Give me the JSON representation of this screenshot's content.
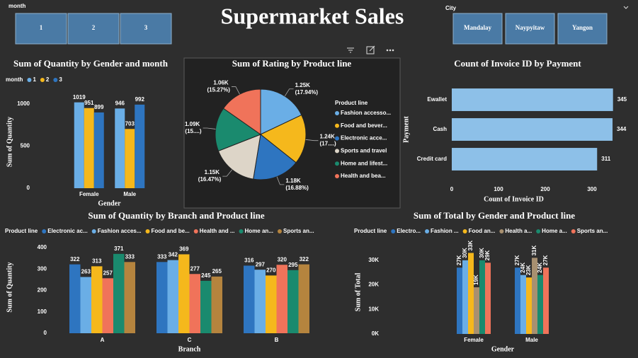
{
  "header": {
    "title": "Supermarket Sales"
  },
  "slicers": [
    {
      "label": "month",
      "items": [
        "1",
        "2",
        "3"
      ]
    },
    {
      "label": "City",
      "items": [
        "Mandalay",
        "Naypyitaw",
        "Yangon"
      ]
    }
  ],
  "chart_data": [
    {
      "type": "bar",
      "title": "Sum of Quantity by Gender and month",
      "x_label": "Gender",
      "y_label": "Sum of Quantity",
      "legend_title": "month",
      "legend": "top-left",
      "grid": false,
      "categories": [
        "Female",
        "Male"
      ],
      "series": [
        {
          "name": "1",
          "color": "#6aaee6",
          "values": [
            1019,
            946
          ]
        },
        {
          "name": "2",
          "color": "#f5b81c",
          "values": [
            951,
            703
          ]
        },
        {
          "name": "3",
          "color": "#2e75c0",
          "values": [
            899,
            992
          ]
        }
      ],
      "ylim": [
        0,
        1100
      ],
      "yticks": [
        0,
        500,
        1000
      ]
    },
    {
      "type": "pie",
      "title": "Sum of Rating by Product line",
      "legend_title": "Product line",
      "legend": "right",
      "categories": [
        "Fashion accesso...",
        "Food and bever...",
        "Electronic acce...",
        "Sports and travel",
        "Home and lifest...",
        "Health and bea..."
      ],
      "values": [
        1251.2,
        1237.7,
        1177.2,
        1148.1,
        1094.0,
        1064.5
      ],
      "value_labels": [
        "1.25K (17.94%)",
        "1.24K (17....)",
        "1.18K (16.88%)",
        "1.15K (16.47%)",
        "1.09K (15....)",
        "1.06K (15.27%)"
      ],
      "colors": [
        "#6aaee6",
        "#f5b81c",
        "#2e75c0",
        "#ddd5c8",
        "#1a8a6e",
        "#f0735a"
      ]
    },
    {
      "type": "hbar",
      "title": "Count of Invoice ID by Payment",
      "x_label": "Count of Invoice ID",
      "y_label": "Payment",
      "grid": false,
      "categories": [
        "Ewallet",
        "Cash",
        "Credit card"
      ],
      "values": [
        345,
        344,
        311
      ],
      "color": "#8dc0e8",
      "xlim": [
        0,
        350
      ],
      "xticks": [
        0,
        100,
        200,
        300
      ]
    },
    {
      "type": "bar",
      "title": "Sum of Quantity by Branch and Product line",
      "x_label": "Branch",
      "y_label": "Sum of Quantity",
      "legend_title": "Product line",
      "legend": "top-left",
      "grid": false,
      "categories": [
        "A",
        "C",
        "B"
      ],
      "series": [
        {
          "name": "Electronic ac...",
          "color": "#2e75c0",
          "values": [
            322,
            333,
            316
          ]
        },
        {
          "name": "Fashion acces...",
          "color": "#6aaee6",
          "values": [
            263,
            342,
            297
          ]
        },
        {
          "name": "Food and be...",
          "color": "#f5b81c",
          "values": [
            313,
            369,
            270
          ]
        },
        {
          "name": "Health and ...",
          "color": "#f0735a",
          "values": [
            257,
            277,
            320
          ]
        },
        {
          "name": "Home an...",
          "color": "#1a8a6e",
          "values": [
            371,
            245,
            295
          ]
        },
        {
          "name": "Sports an...",
          "color": "#b5843e",
          "values": [
            333,
            265,
            322
          ]
        }
      ],
      "ylim": [
        0,
        430
      ],
      "yticks": [
        0,
        100,
        200,
        300,
        400
      ]
    },
    {
      "type": "bar",
      "title": "Sum of Total by Gender and Product line",
      "x_label": "Gender",
      "y_label": "Sum of Total",
      "legend_title": "Product line",
      "legend": "top-left",
      "grid": false,
      "categories": [
        "Female",
        "Male"
      ],
      "series": [
        {
          "name": "Electro...",
          "color": "#2e75c0",
          "values": [
            27000,
            27000
          ],
          "value_labels": [
            "27K",
            "27K"
          ]
        },
        {
          "name": "Fashion ...",
          "color": "#6aaee6",
          "values": [
            30000,
            24000
          ],
          "value_labels": [
            "30K",
            "24K"
          ]
        },
        {
          "name": "Food an...",
          "color": "#f5b81c",
          "values": [
            33000,
            23000
          ],
          "value_labels": [
            "33K",
            "23K"
          ]
        },
        {
          "name": "Health a...",
          "color": "#a89070",
          "values": [
            19000,
            31000
          ],
          "value_labels": [
            "19K",
            "31K"
          ]
        },
        {
          "name": "Home a...",
          "color": "#1a8a6e",
          "values": [
            30000,
            24000
          ],
          "value_labels": [
            "30K",
            "24K"
          ]
        },
        {
          "name": "Sports an...",
          "color": "#f0735a",
          "values": [
            29000,
            27000
          ],
          "value_labels": [
            "29K",
            "27K"
          ]
        }
      ],
      "ylim": [
        0,
        34000
      ],
      "yticks": [
        {
          "value": 0,
          "label": "0K"
        },
        {
          "value": 10000,
          "label": "10K"
        },
        {
          "value": 20000,
          "label": "20K"
        },
        {
          "value": 30000,
          "label": "30K"
        }
      ]
    }
  ]
}
